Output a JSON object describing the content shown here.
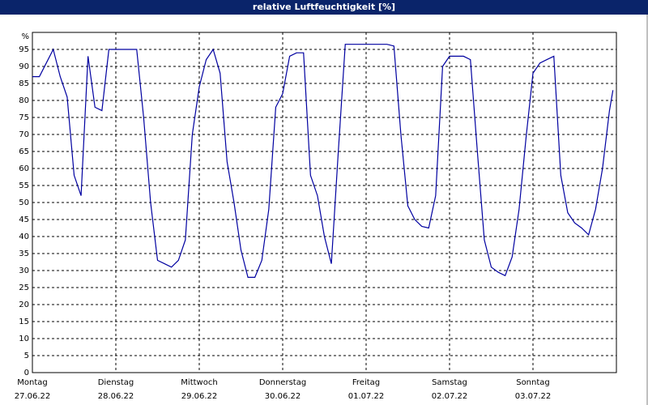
{
  "chart_data": {
    "type": "line",
    "title": "relative Luftfeuchtigkeit [%]",
    "y_label": "%",
    "x": [
      0,
      2,
      4,
      6,
      8,
      10,
      12,
      14,
      16,
      18,
      20,
      22,
      24,
      26,
      28,
      30,
      32,
      34,
      36,
      38,
      40,
      42,
      44,
      46,
      48,
      50,
      52,
      54,
      56,
      58,
      60,
      62,
      64,
      66,
      68,
      70,
      72,
      74,
      76,
      78,
      80,
      82,
      84,
      86,
      88,
      90,
      92,
      94,
      96,
      98,
      100,
      102,
      104,
      106,
      108,
      110,
      112,
      114,
      116,
      118,
      120,
      122,
      124,
      126,
      128,
      130,
      132,
      134,
      136,
      138,
      140,
      142,
      144,
      146,
      148,
      150,
      152,
      154,
      156,
      158,
      160,
      162,
      164,
      166,
      167
    ],
    "series": [
      {
        "name": "relative Luftfeuchtigkeit",
        "color": "#0000a0",
        "values": [
          87,
          87,
          91,
          95,
          87,
          81,
          58,
          52,
          93,
          78,
          77,
          95,
          95,
          95,
          95,
          95,
          75,
          50,
          33,
          32,
          31,
          33,
          39,
          70,
          84,
          92,
          95,
          88,
          62,
          50,
          36,
          28,
          28,
          33,
          48,
          78,
          82,
          93,
          94,
          94,
          58,
          52,
          40,
          32,
          65,
          96.5,
          96.5,
          96.5,
          96.5,
          96.5,
          96.5,
          96.5,
          96,
          70,
          49,
          45,
          43,
          42.5,
          52,
          90,
          93,
          93,
          93,
          92,
          65,
          39,
          31,
          29.5,
          28.5,
          34,
          48,
          69,
          88,
          91,
          92,
          93,
          58,
          47,
          44,
          42.5,
          40.5,
          48,
          60,
          77,
          83
        ]
      }
    ],
    "xlim": [
      0,
      168
    ],
    "xticks": [
      {
        "value": 0,
        "label": "Montag",
        "date": "27.06.22"
      },
      {
        "value": 24,
        "label": "Dienstag",
        "date": "28.06.22"
      },
      {
        "value": 48,
        "label": "Mittwoch",
        "date": "29.06.22"
      },
      {
        "value": 72,
        "label": "Donnerstag",
        "date": "30.06.22"
      },
      {
        "value": 96,
        "label": "Freitag",
        "date": "01.07.22"
      },
      {
        "value": 120,
        "label": "Samstag",
        "date": "02.07.22"
      },
      {
        "value": 144,
        "label": "Sonntag",
        "date": "03.07.22"
      }
    ],
    "ylim": [
      0,
      100
    ],
    "yticks": [
      0,
      5,
      10,
      15,
      20,
      25,
      30,
      35,
      40,
      45,
      50,
      55,
      60,
      65,
      70,
      75,
      80,
      85,
      90,
      95
    ],
    "grid": true
  }
}
